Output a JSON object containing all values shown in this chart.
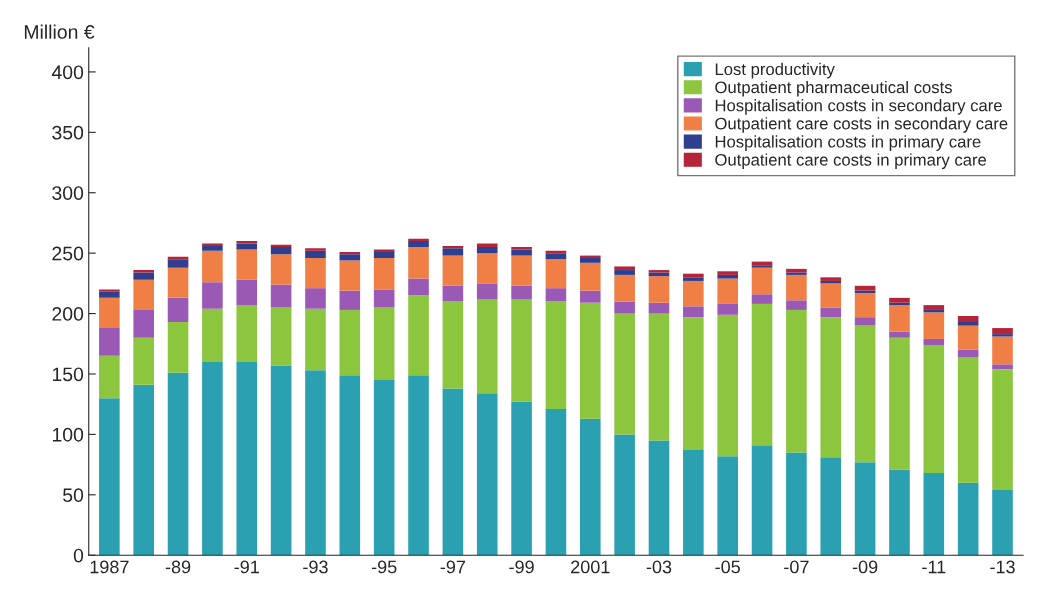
{
  "chart_data": {
    "type": "bar",
    "stacked": true,
    "ylabel": "Million €",
    "categories": [
      "1987",
      null,
      "-89",
      null,
      "-91",
      null,
      "-93",
      null,
      "-95",
      null,
      "-97",
      null,
      "-99",
      null,
      "2001",
      null,
      "-03",
      null,
      "-05",
      null,
      "-07",
      null,
      "-09",
      null,
      "-11",
      null,
      "-13"
    ],
    "series": [
      {
        "name": "Lost productivity",
        "color": "#2aa0b0",
        "values": [
          130,
          141,
          151,
          160,
          160,
          157,
          153,
          149,
          145,
          149,
          138,
          134,
          127,
          121,
          113,
          100,
          95,
          87,
          82,
          91,
          85,
          81,
          77,
          71,
          68,
          60,
          54
        ]
      },
      {
        "name": "Outpatient pharmaceutical costs",
        "color": "#8cc63f",
        "values": [
          35,
          39,
          42,
          44,
          47,
          48,
          51,
          54,
          60,
          66,
          72,
          78,
          85,
          89,
          96,
          100,
          105,
          110,
          117,
          117,
          118,
          116,
          113,
          109,
          106,
          104,
          100
        ]
      },
      {
        "name": "Hospitalisation costs in secondary care",
        "color": "#9b59b6",
        "values": [
          23,
          23,
          20,
          22,
          21,
          19,
          17,
          16,
          15,
          14,
          13,
          13,
          11,
          11,
          10,
          10,
          9,
          9,
          9,
          8,
          8,
          8,
          7,
          5,
          5,
          6,
          4
        ]
      },
      {
        "name": "Outpatient care costs in secondary care",
        "color": "#f07f45",
        "values": [
          25,
          25,
          25,
          26,
          25,
          25,
          25,
          25,
          26,
          26,
          25,
          25,
          25,
          24,
          23,
          22,
          22,
          21,
          21,
          22,
          21,
          20,
          20,
          22,
          22,
          20,
          23
        ]
      },
      {
        "name": "Hospitalisation costs in primary care",
        "color": "#2e3f8f",
        "values": [
          5,
          6,
          7,
          4,
          5,
          6,
          6,
          5,
          5,
          5,
          6,
          5,
          5,
          5,
          4,
          4,
          3,
          3,
          3,
          2,
          2,
          2,
          2,
          2,
          2,
          3,
          2
        ]
      },
      {
        "name": "Outpatient care costs in primary care",
        "color": "#b5253a",
        "values": [
          2,
          2,
          2,
          2,
          2,
          2,
          2,
          2,
          2,
          2,
          2,
          3,
          2,
          2,
          2,
          3,
          2,
          3,
          3,
          3,
          3,
          3,
          4,
          4,
          4,
          5,
          5
        ]
      }
    ],
    "ylim": [
      0,
      420
    ],
    "yticks": [
      0,
      50,
      100,
      150,
      200,
      250,
      300,
      350,
      400
    ],
    "grid": false,
    "legend": "top right"
  }
}
